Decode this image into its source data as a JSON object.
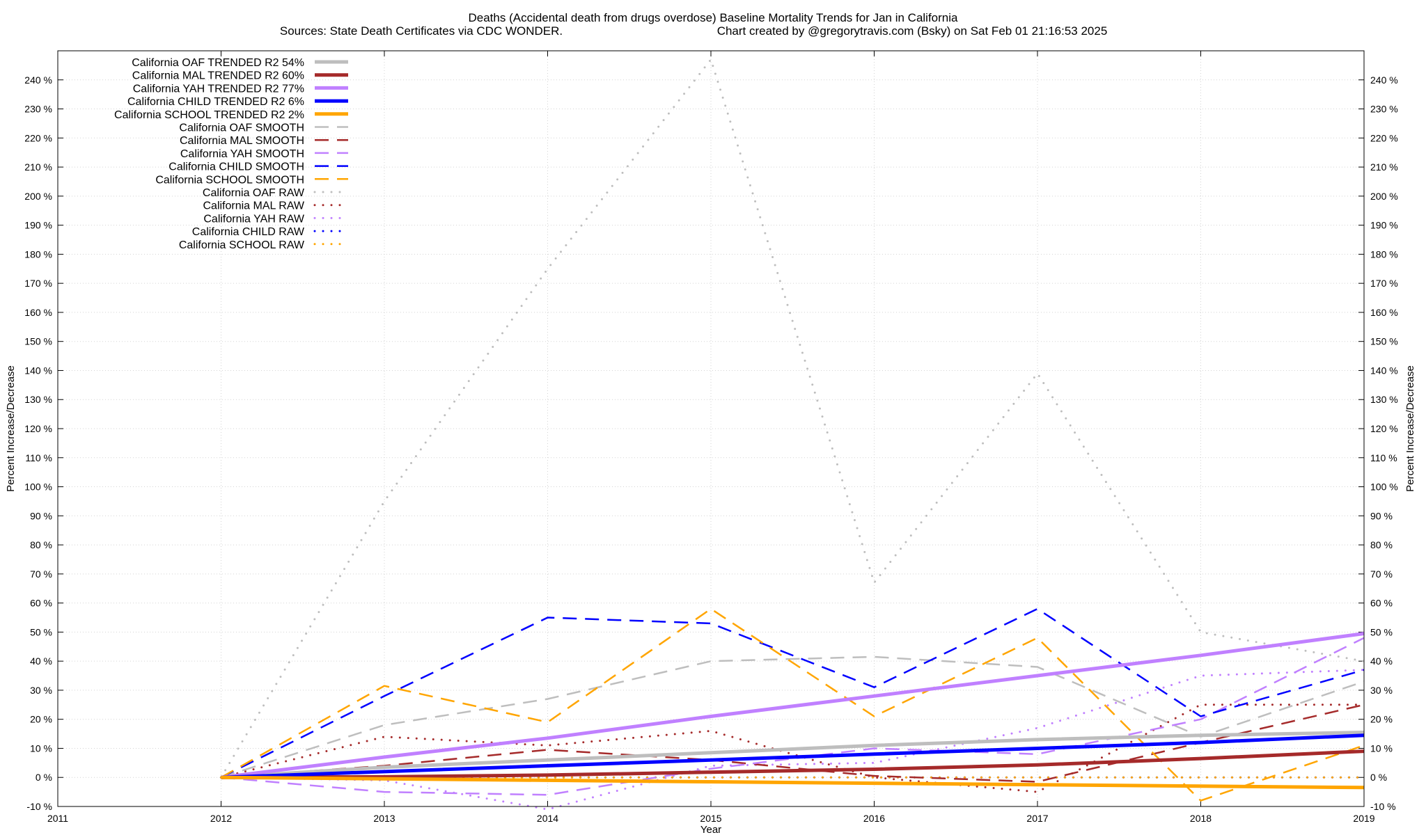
{
  "chart_data": {
    "type": "line",
    "title": "Deaths (Accidental death from drugs overdose)  Baseline Mortality Trends for Jan in California",
    "subtitle_left": "Sources: State Death Certificates via CDC WONDER.",
    "subtitle_right": "Chart created by @gregorytravis.com (Bsky) on Sat Feb 01 21:16:53 2025",
    "xlabel": "Year",
    "ylabel": "Percent Increase/Decrease",
    "ylabel_right": "Percent Increase/Decrease",
    "xlim": [
      2011,
      2019
    ],
    "ylim": [
      -10,
      250
    ],
    "x_ticks": [
      2011,
      2012,
      2013,
      2014,
      2015,
      2016,
      2017,
      2018,
      2019
    ],
    "y_ticks": [
      -10,
      0,
      10,
      20,
      30,
      40,
      50,
      60,
      70,
      80,
      90,
      100,
      110,
      120,
      130,
      140,
      150,
      160,
      170,
      180,
      190,
      200,
      210,
      220,
      230,
      240
    ],
    "y_tick_suffix": " %",
    "grid": true,
    "legend_position": "top-left",
    "series": [
      {
        "name": "California OAF TRENDED R2  54%",
        "style": "trend",
        "color": "#bebebe",
        "x": [
          2012,
          2013,
          2014,
          2015,
          2016,
          2017,
          2018,
          2019
        ],
        "y": [
          0,
          3.5,
          6,
          8.5,
          11,
          13,
          14.5,
          15.5
        ]
      },
      {
        "name": "California MAL TRENDED R2  60%",
        "style": "trend",
        "color": "#a52a2a",
        "x": [
          2012,
          2013,
          2014,
          2015,
          2016,
          2017,
          2018,
          2019
        ],
        "y": [
          0,
          0.2,
          0.8,
          1.8,
          2.8,
          4.3,
          6.5,
          9
        ]
      },
      {
        "name": "California YAH TRENDED R2  77%",
        "style": "trend",
        "color": "#c080ff",
        "x": [
          2012,
          2013,
          2014,
          2015,
          2016,
          2017,
          2018,
          2019
        ],
        "y": [
          0,
          7,
          13.5,
          21,
          28,
          35,
          42,
          49.5
        ]
      },
      {
        "name": "California CHILD TRENDED R2  6%",
        "style": "trend",
        "color": "#0000ff",
        "x": [
          2012,
          2013,
          2014,
          2015,
          2016,
          2017,
          2018,
          2019
        ],
        "y": [
          0,
          2,
          4,
          6,
          8,
          10,
          12,
          14.5
        ]
      },
      {
        "name": "California SCHOOL TRENDED R2  2%",
        "style": "trend",
        "color": "#ffa500",
        "x": [
          2012,
          2013,
          2014,
          2015,
          2016,
          2017,
          2018,
          2019
        ],
        "y": [
          0,
          -0.5,
          -1,
          -1.5,
          -2,
          -2.5,
          -3,
          -3.5
        ]
      },
      {
        "name": "California OAF SMOOTH",
        "style": "smooth",
        "color": "#bebebe",
        "x": [
          2012,
          2013,
          2014,
          2015,
          2016,
          2017,
          2018,
          2019
        ],
        "y": [
          0,
          18,
          27,
          40,
          41.5,
          38,
          14,
          33
        ]
      },
      {
        "name": "California MAL SMOOTH",
        "style": "smooth",
        "color": "#a52a2a",
        "x": [
          2012,
          2013,
          2014,
          2015,
          2016,
          2017,
          2018,
          2019
        ],
        "y": [
          0,
          4,
          9.5,
          6,
          0.5,
          -1.5,
          12,
          25
        ]
      },
      {
        "name": "California YAH SMOOTH",
        "style": "smooth",
        "color": "#c080ff",
        "x": [
          2012,
          2013,
          2014,
          2015,
          2016,
          2017,
          2018,
          2019
        ],
        "y": [
          0,
          -5,
          -6,
          3,
          10,
          8,
          20,
          48
        ]
      },
      {
        "name": "California CHILD SMOOTH",
        "style": "smooth",
        "color": "#0000ff",
        "x": [
          2012,
          2013,
          2014,
          2015,
          2016,
          2017,
          2018,
          2019
        ],
        "y": [
          0,
          28,
          55,
          53,
          31,
          58,
          21,
          37
        ]
      },
      {
        "name": "California SCHOOL SMOOTH",
        "style": "smooth",
        "color": "#ffa500",
        "x": [
          2012,
          2013,
          2014,
          2015,
          2016,
          2017,
          2018,
          2019
        ],
        "y": [
          0,
          31.5,
          19,
          58,
          21,
          48,
          -8,
          11
        ]
      },
      {
        "name": "California OAF RAW",
        "style": "raw",
        "color": "#bebebe",
        "x": [
          2012,
          2013,
          2014,
          2015,
          2016,
          2017,
          2018,
          2019
        ],
        "y": [
          0,
          95,
          175,
          247,
          67,
          139,
          50,
          40
        ]
      },
      {
        "name": "California MAL RAW",
        "style": "raw",
        "color": "#a52a2a",
        "x": [
          2012,
          2013,
          2014,
          2015,
          2016,
          2017,
          2018,
          2019
        ],
        "y": [
          0,
          14,
          11,
          16,
          0,
          -5,
          25,
          25
        ]
      },
      {
        "name": "California YAH RAW",
        "style": "raw",
        "color": "#c080ff",
        "x": [
          2012,
          2013,
          2014,
          2015,
          2016,
          2017,
          2018,
          2019
        ],
        "y": [
          0,
          -1,
          -11,
          4,
          5,
          17,
          35,
          37
        ]
      },
      {
        "name": "California CHILD RAW",
        "style": "raw",
        "color": "#0000ff",
        "x": [
          2012,
          2013,
          2014,
          2015,
          2016,
          2017,
          2018,
          2019
        ],
        "y": [
          0,
          0,
          0,
          0,
          0,
          0,
          0,
          0
        ]
      },
      {
        "name": "California SCHOOL RAW",
        "style": "raw",
        "color": "#ffa500",
        "x": [
          2012,
          2013,
          2014,
          2015,
          2016,
          2017,
          2018,
          2019
        ],
        "y": [
          0,
          0,
          0,
          0,
          0,
          0,
          0,
          0
        ]
      }
    ]
  }
}
